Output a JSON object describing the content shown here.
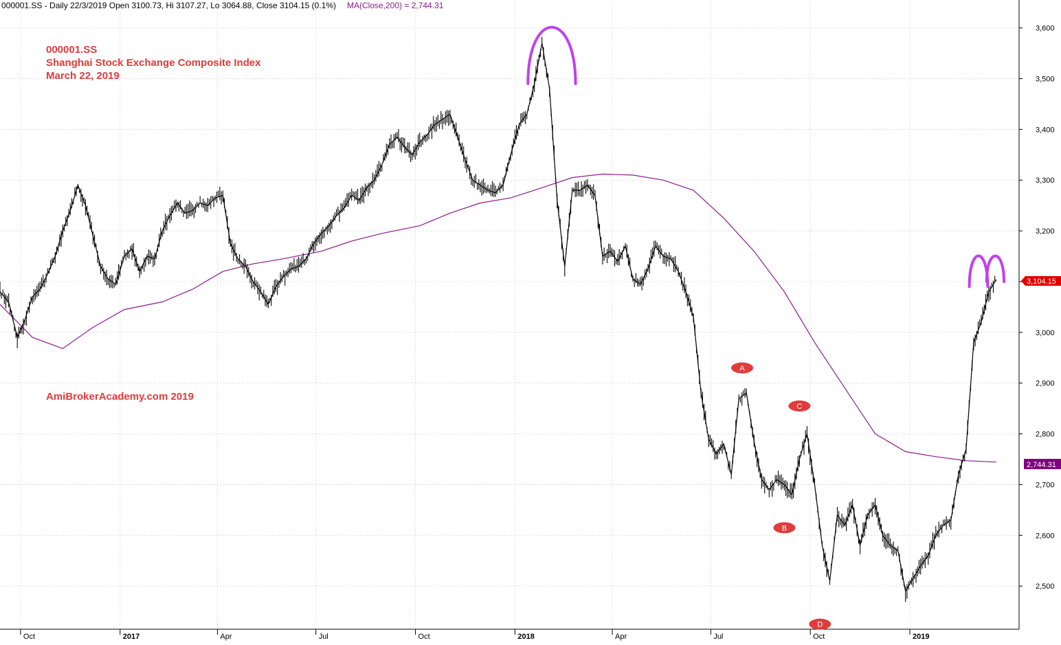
{
  "header": {
    "ticker_line": "000001.SS - Daily 22/3/2019 Open 3100.73, Hi 3107.27, Lo 3064.88, Close 3104.15 (0.1%)",
    "ma_line": "MA(Close,200) = 2,744.31"
  },
  "annotations": {
    "title_lines": [
      "000001.SS",
      "Shanghai Stock Exchange Composite Index",
      "March 22, 2019"
    ],
    "watermark": "AmiBrokerAcademy.com   2019",
    "point_labels": [
      "A",
      "B",
      "C",
      "D"
    ]
  },
  "colors": {
    "price": "#000000",
    "ma": "#8b1a8b",
    "annotation_text": "#e03c3c",
    "arc": "#c040f0",
    "label_fill": "#e03c3c",
    "last_price_bg": "#e00000",
    "ma_value_bg": "#800080",
    "grid": "#c8c8c8"
  },
  "chart_data": {
    "type": "line",
    "title": "",
    "xlabel": "",
    "ylabel": "",
    "ylim": [
      2415,
      3655
    ],
    "yticks": [
      2500,
      2600,
      2700,
      2800,
      2900,
      3000,
      3100,
      3200,
      3300,
      3400,
      3500,
      3600
    ],
    "ytick_labels": [
      "2,500",
      "2,600",
      "2,700",
      "2,800",
      "2,900",
      "3,000",
      "3,100",
      "3,200",
      "3,300",
      "3,400",
      "3,500",
      "3,600"
    ],
    "x_range": [
      "2016-09-12",
      "2019-04-12"
    ],
    "xticks": [
      {
        "date": "2016-10-01",
        "label": "Oct"
      },
      {
        "date": "2017-01-01",
        "label": "2017"
      },
      {
        "date": "2017-04-01",
        "label": "Apr"
      },
      {
        "date": "2017-07-01",
        "label": "Jul"
      },
      {
        "date": "2017-10-01",
        "label": "Oct"
      },
      {
        "date": "2018-01-01",
        "label": "2018"
      },
      {
        "date": "2018-04-01",
        "label": "Apr"
      },
      {
        "date": "2018-07-01",
        "label": "Jul"
      },
      {
        "date": "2018-10-01",
        "label": "Oct"
      },
      {
        "date": "2019-01-01",
        "label": "2019"
      }
    ],
    "grid": true,
    "last_close_label": "3,104.15",
    "ma_label": "2,744.31",
    "series": [
      {
        "name": "000001.SS",
        "style": "daily-bars",
        "x": [
          "2016-09-12",
          "2016-09-20",
          "2016-09-28",
          "2016-10-05",
          "2016-10-12",
          "2016-10-19",
          "2016-10-26",
          "2016-11-02",
          "2016-11-09",
          "2016-11-16",
          "2016-11-23",
          "2016-11-30",
          "2016-12-07",
          "2016-12-14",
          "2016-12-21",
          "2016-12-28",
          "2017-01-05",
          "2017-01-12",
          "2017-01-19",
          "2017-01-26",
          "2017-02-02",
          "2017-02-09",
          "2017-02-16",
          "2017-02-23",
          "2017-03-02",
          "2017-03-09",
          "2017-03-16",
          "2017-03-23",
          "2017-03-30",
          "2017-04-06",
          "2017-04-13",
          "2017-04-20",
          "2017-04-27",
          "2017-05-04",
          "2017-05-11",
          "2017-05-18",
          "2017-05-25",
          "2017-06-01",
          "2017-06-08",
          "2017-06-15",
          "2017-06-22",
          "2017-06-29",
          "2017-07-06",
          "2017-07-13",
          "2017-07-20",
          "2017-07-27",
          "2017-08-03",
          "2017-08-10",
          "2017-08-17",
          "2017-08-24",
          "2017-08-31",
          "2017-09-07",
          "2017-09-14",
          "2017-09-21",
          "2017-09-28",
          "2017-10-05",
          "2017-10-12",
          "2017-10-19",
          "2017-10-26",
          "2017-11-02",
          "2017-11-09",
          "2017-11-16",
          "2017-11-23",
          "2017-11-30",
          "2017-12-07",
          "2017-12-14",
          "2017-12-21",
          "2017-12-28",
          "2018-01-05",
          "2018-01-12",
          "2018-01-19",
          "2018-01-26",
          "2018-02-02",
          "2018-02-09",
          "2018-02-16",
          "2018-02-23",
          "2018-03-02",
          "2018-03-09",
          "2018-03-16",
          "2018-03-23",
          "2018-03-30",
          "2018-04-06",
          "2018-04-13",
          "2018-04-20",
          "2018-04-27",
          "2018-05-04",
          "2018-05-11",
          "2018-05-18",
          "2018-05-25",
          "2018-06-01",
          "2018-06-08",
          "2018-06-15",
          "2018-06-22",
          "2018-06-29",
          "2018-07-06",
          "2018-07-13",
          "2018-07-20",
          "2018-07-27",
          "2018-08-03",
          "2018-08-10",
          "2018-08-17",
          "2018-08-24",
          "2018-08-31",
          "2018-09-07",
          "2018-09-14",
          "2018-09-21",
          "2018-09-28",
          "2018-10-05",
          "2018-10-12",
          "2018-10-19",
          "2018-10-26",
          "2018-11-02",
          "2018-11-09",
          "2018-11-16",
          "2018-11-23",
          "2018-11-30",
          "2018-12-07",
          "2018-12-14",
          "2018-12-21",
          "2018-12-28",
          "2019-01-04",
          "2019-01-11",
          "2019-01-18",
          "2019-01-25",
          "2019-02-01",
          "2019-02-08",
          "2019-02-15",
          "2019-02-22",
          "2019-03-01",
          "2019-03-08",
          "2019-03-15",
          "2019-03-22"
        ],
        "values": [
          3080,
          3060,
          2990,
          3025,
          3070,
          3085,
          3115,
          3150,
          3200,
          3240,
          3290,
          3250,
          3190,
          3130,
          3105,
          3095,
          3150,
          3165,
          3120,
          3150,
          3145,
          3200,
          3230,
          3255,
          3235,
          3240,
          3255,
          3250,
          3265,
          3270,
          3175,
          3145,
          3130,
          3100,
          3080,
          3055,
          3090,
          3110,
          3125,
          3130,
          3145,
          3175,
          3195,
          3210,
          3230,
          3245,
          3270,
          3260,
          3285,
          3300,
          3330,
          3370,
          3385,
          3365,
          3350,
          3375,
          3390,
          3410,
          3420,
          3430,
          3385,
          3340,
          3300,
          3290,
          3280,
          3275,
          3290,
          3350,
          3410,
          3430,
          3490,
          3570,
          3480,
          3260,
          3130,
          3280,
          3280,
          3290,
          3270,
          3150,
          3160,
          3140,
          3170,
          3105,
          3095,
          3125,
          3170,
          3150,
          3145,
          3120,
          3080,
          3030,
          2880,
          2790,
          2760,
          2780,
          2720,
          2870,
          2880,
          2785,
          2710,
          2690,
          2710,
          2700,
          2680,
          2750,
          2800,
          2700,
          2580,
          2510,
          2640,
          2620,
          2660,
          2580,
          2640,
          2660,
          2600,
          2580,
          2570,
          2490,
          2515,
          2540,
          2560,
          2600,
          2620,
          2630,
          2720,
          2770,
          2980,
          3020,
          3080,
          3104.15
        ]
      },
      {
        "name": "MA(Close,200)",
        "x": [
          "2016-09-12",
          "2016-10-12",
          "2016-11-09",
          "2016-12-07",
          "2017-01-05",
          "2017-02-09",
          "2017-03-09",
          "2017-04-06",
          "2017-05-04",
          "2017-06-01",
          "2017-07-06",
          "2017-08-03",
          "2017-08-31",
          "2017-10-05",
          "2017-11-02",
          "2017-11-30",
          "2017-12-28",
          "2018-01-26",
          "2018-02-23",
          "2018-03-23",
          "2018-04-20",
          "2018-05-18",
          "2018-06-15",
          "2018-07-13",
          "2018-08-10",
          "2018-09-07",
          "2018-10-05",
          "2018-11-02",
          "2018-11-30",
          "2018-12-28",
          "2019-01-25",
          "2019-02-22",
          "2019-03-22"
        ],
        "values": [
          3055,
          2990,
          2968,
          3010,
          3045,
          3060,
          3085,
          3120,
          3135,
          3145,
          3160,
          3180,
          3195,
          3210,
          3235,
          3255,
          3265,
          3285,
          3305,
          3312,
          3310,
          3300,
          3280,
          3225,
          3160,
          3080,
          2980,
          2890,
          2800,
          2765,
          2755,
          2747,
          2744.31
        ]
      }
    ]
  }
}
